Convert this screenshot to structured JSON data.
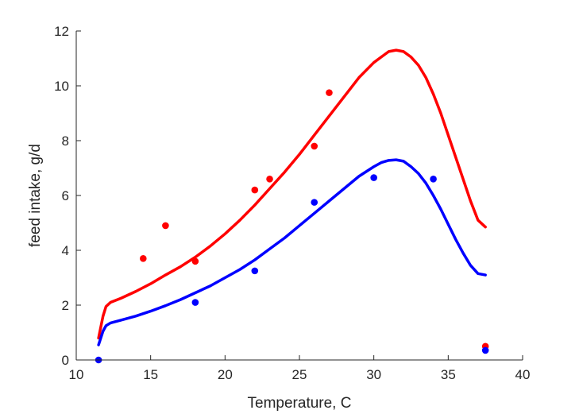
{
  "chart_data": {
    "type": "scatter",
    "xlabel": "Temperature, C",
    "ylabel": "feed intake, g/d",
    "xlim": [
      10,
      40
    ],
    "ylim": [
      0,
      12
    ],
    "xticks": [
      "10",
      "15",
      "20",
      "25",
      "30",
      "35",
      "40"
    ],
    "yticks": [
      "0",
      "2",
      "4",
      "6",
      "8",
      "10",
      "12"
    ],
    "grid": false,
    "legend": "none",
    "series": [
      {
        "color": "#ff0000",
        "points": {
          "x": [
            14.5,
            16,
            18,
            22,
            23,
            26,
            27,
            37.5
          ],
          "y": [
            3.7,
            4.9,
            3.6,
            6.2,
            6.6,
            7.8,
            9.75,
            0.5
          ]
        },
        "curve": {
          "x": [
            11.5,
            11.8,
            12.0,
            12.3,
            13,
            14,
            15,
            16,
            17,
            18,
            19,
            20,
            21,
            22,
            23,
            24,
            25,
            26,
            27,
            28,
            29,
            30,
            30.5,
            31,
            31.5,
            32,
            32.5,
            33,
            33.5,
            34,
            34.5,
            35,
            35.5,
            36,
            36.5,
            37,
            37.5
          ],
          "y": [
            0.8,
            1.6,
            1.95,
            2.1,
            2.25,
            2.5,
            2.78,
            3.1,
            3.4,
            3.75,
            4.15,
            4.6,
            5.1,
            5.65,
            6.25,
            6.85,
            7.5,
            8.2,
            8.9,
            9.6,
            10.3,
            10.85,
            11.05,
            11.25,
            11.3,
            11.25,
            11.05,
            10.75,
            10.3,
            9.7,
            9.0,
            8.2,
            7.4,
            6.6,
            5.8,
            5.1,
            4.85
          ]
        }
      },
      {
        "color": "#0000ff",
        "points": {
          "x": [
            11.5,
            18,
            22,
            26,
            30,
            34,
            37.5
          ],
          "y": [
            0.0,
            2.1,
            3.25,
            5.75,
            6.65,
            6.6,
            0.35
          ]
        },
        "curve": {
          "x": [
            11.5,
            11.8,
            12.0,
            12.3,
            13,
            14,
            15,
            16,
            17,
            18,
            19,
            20,
            21,
            22,
            23,
            24,
            25,
            26,
            27,
            28,
            29,
            30,
            30.5,
            31,
            31.5,
            32,
            32.5,
            33,
            33.5,
            34,
            34.5,
            35,
            35.5,
            36,
            36.5,
            37,
            37.5
          ],
          "y": [
            0.55,
            1.05,
            1.25,
            1.35,
            1.45,
            1.6,
            1.78,
            1.98,
            2.2,
            2.45,
            2.7,
            3.0,
            3.3,
            3.65,
            4.05,
            4.45,
            4.9,
            5.35,
            5.8,
            6.25,
            6.7,
            7.05,
            7.2,
            7.28,
            7.3,
            7.25,
            7.05,
            6.8,
            6.45,
            6.0,
            5.5,
            4.95,
            4.4,
            3.9,
            3.45,
            3.15,
            3.1
          ]
        }
      }
    ]
  }
}
